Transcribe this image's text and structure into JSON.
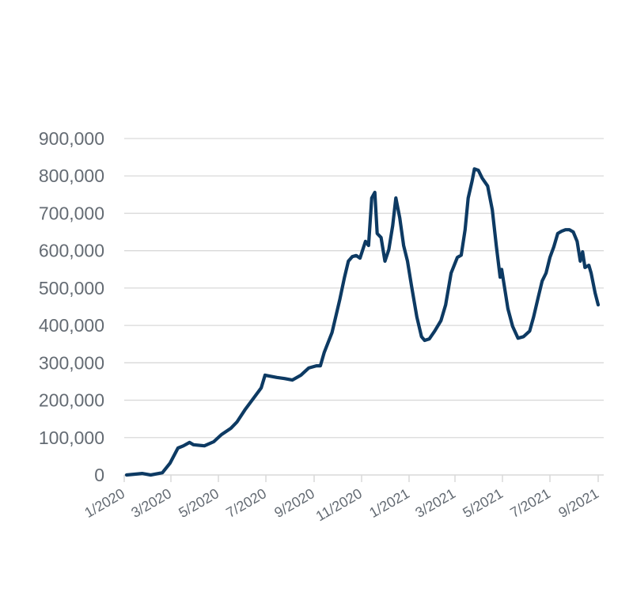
{
  "chart_data": {
    "type": "line",
    "title": "",
    "xlabel": "",
    "ylabel": "",
    "x_unit": "days since 2020-01-01",
    "x_origin": "2020-01-01",
    "xlim": [
      0,
      612
    ],
    "ylim": [
      0,
      900000
    ],
    "grid": "horizontal",
    "legend": "none",
    "line_color": "#0d3a63",
    "grid_color": "#d9d9d9",
    "label_color": "#646b73",
    "y_ticks": [
      {
        "value": 0,
        "label": "0"
      },
      {
        "value": 100000,
        "label": "100,000"
      },
      {
        "value": 200000,
        "label": "200,000"
      },
      {
        "value": 300000,
        "label": "300,000"
      },
      {
        "value": 400000,
        "label": "400,000"
      },
      {
        "value": 500000,
        "label": "500,000"
      },
      {
        "value": 600000,
        "label": "600,000"
      },
      {
        "value": 700000,
        "label": "700,000"
      },
      {
        "value": 800000,
        "label": "800,000"
      },
      {
        "value": 900000,
        "label": "900,000"
      }
    ],
    "x_ticks": [
      {
        "value": 0,
        "label": "1/2020"
      },
      {
        "value": 60,
        "label": "3/2020"
      },
      {
        "value": 121,
        "label": "5/2020"
      },
      {
        "value": 182,
        "label": "7/2020"
      },
      {
        "value": 244,
        "label": "9/2020"
      },
      {
        "value": 305,
        "label": "11/2020"
      },
      {
        "value": 366,
        "label": "1/2021"
      },
      {
        "value": 425,
        "label": "3/2021"
      },
      {
        "value": 486,
        "label": "5/2021"
      },
      {
        "value": 547,
        "label": "7/2021"
      },
      {
        "value": 609,
        "label": "9/2021"
      }
    ],
    "series": [
      {
        "name": "value",
        "x": [
          3,
          23,
          34,
          49,
          59,
          69,
          76,
          84,
          89,
          103,
          115,
          125,
          137,
          145,
          155,
          166,
          176,
          181,
          186,
          196,
          206,
          216,
          227,
          237,
          247,
          252,
          257,
          267,
          277,
          283,
          288,
          293,
          298,
          303,
          310,
          314,
          318,
          322,
          325,
          330,
          335,
          340,
          345,
          349,
          354,
          359,
          364,
          369,
          376,
          382,
          386,
          392,
          399,
          407,
          413,
          420,
          428,
          433,
          438,
          442,
          447,
          450,
          455,
          460,
          467,
          473,
          478,
          483,
          485,
          489,
          493,
          499,
          506,
          513,
          521,
          526,
          532,
          537,
          542,
          547,
          552,
          557,
          562,
          567,
          572,
          577,
          582,
          586,
          589,
          592,
          597,
          600,
          605,
          609
        ],
        "y": [
          0,
          4000,
          0,
          6000,
          32000,
          72000,
          78000,
          87000,
          81000,
          78000,
          89000,
          108000,
          125000,
          142000,
          174000,
          205000,
          233000,
          267000,
          265000,
          261000,
          258000,
          254000,
          267000,
          286000,
          292000,
          292000,
          328000,
          381000,
          470000,
          529000,
          572000,
          584000,
          587000,
          580000,
          625000,
          614000,
          741000,
          756000,
          646000,
          635000,
          572000,
          603000,
          667000,
          741000,
          688000,
          614000,
          572000,
          508000,
          423000,
          370000,
          360000,
          364000,
          385000,
          413000,
          455000,
          540000,
          582000,
          588000,
          656000,
          741000,
          787000,
          819000,
          815000,
          794000,
          773000,
          709000,
          614000,
          529000,
          550000,
          497000,
          445000,
          398000,
          366000,
          370000,
          385000,
          423000,
          476000,
          519000,
          540000,
          582000,
          610000,
          646000,
          652000,
          656000,
          656000,
          650000,
          625000,
          572000,
          597000,
          555000,
          561000,
          540000,
          487000,
          455000
        ]
      }
    ]
  }
}
